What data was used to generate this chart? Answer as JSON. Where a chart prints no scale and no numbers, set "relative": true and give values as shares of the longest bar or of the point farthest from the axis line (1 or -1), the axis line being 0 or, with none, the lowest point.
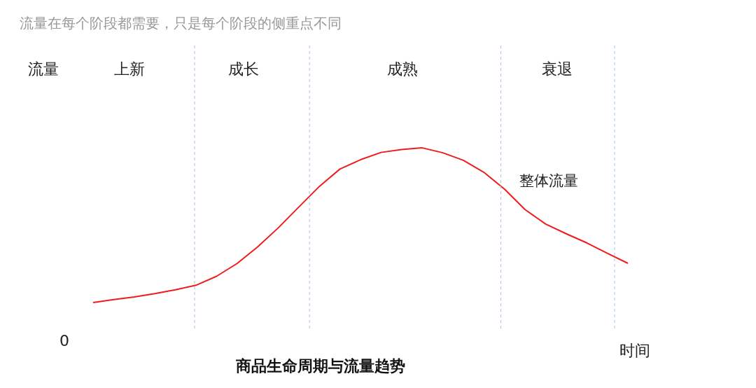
{
  "chart_data": {
    "type": "line",
    "title": "流量在每个阶段都需要，只是每个阶段的侧重点不同",
    "subtitle": "商品生命周期与流量趋势",
    "xlabel": "时间",
    "ylabel": "流量",
    "relative": true,
    "grid": false,
    "legend": false,
    "marker": "none",
    "line_style": "solid",
    "categories": [
      null,
      null,
      null,
      null,
      null,
      null,
      null,
      null,
      null,
      null,
      null,
      null,
      null,
      null,
      null,
      null,
      null,
      null,
      null,
      null,
      null,
      null,
      null,
      null,
      null,
      null,
      null
    ],
    "series": [
      {
        "name": "整体流量",
        "color": "#ee1c1c",
        "values": [
          0.153,
          0.17,
          0.184,
          0.202,
          0.223,
          0.248,
          0.297,
          0.367,
          0.458,
          0.562,
          0.676,
          0.789,
          0.884,
          0.935,
          0.975,
          0.991,
          1,
          0.973,
          0.932,
          0.866,
          0.774,
          0.662,
          0.583,
          0.53,
          0.48,
          0.423,
          0.368
        ]
      }
    ],
    "annotations": [
      "上新",
      "成长",
      "成熟",
      "衰退",
      "0"
    ]
  }
}
